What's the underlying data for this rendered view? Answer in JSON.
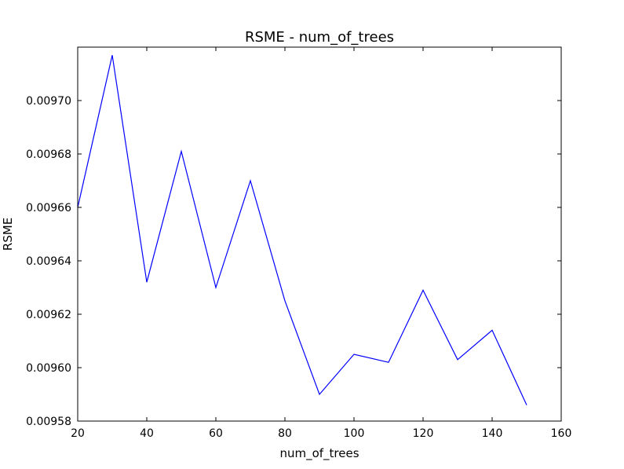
{
  "chart_data": {
    "type": "line",
    "title": "RSME - num_of_trees",
    "xlabel": "num_of_trees",
    "ylabel": "RSME",
    "xlim": [
      20,
      160
    ],
    "ylim": [
      0.00958,
      0.00972
    ],
    "x_ticks": [
      20,
      40,
      60,
      80,
      100,
      120,
      140,
      160
    ],
    "x_tick_labels": [
      "20",
      "40",
      "60",
      "80",
      "100",
      "120",
      "140",
      "160"
    ],
    "y_ticks": [
      0.00958,
      0.0096,
      0.00962,
      0.00964,
      0.00966,
      0.00968,
      0.0097
    ],
    "y_tick_labels": [
      "0.00958",
      "0.00960",
      "0.00962",
      "0.00964",
      "0.00966",
      "0.00968",
      "0.00970"
    ],
    "grid": false,
    "series": [
      {
        "color": "#0000ff",
        "x": [
          20,
          30,
          40,
          50,
          60,
          70,
          80,
          90,
          100,
          110,
          120,
          130,
          140,
          150
        ],
        "y": [
          0.00966,
          0.009717,
          0.009632,
          0.009681,
          0.00963,
          0.00967,
          0.009625,
          0.00959,
          0.009605,
          0.009602,
          0.009629,
          0.009603,
          0.009614,
          0.009586
        ]
      }
    ]
  }
}
